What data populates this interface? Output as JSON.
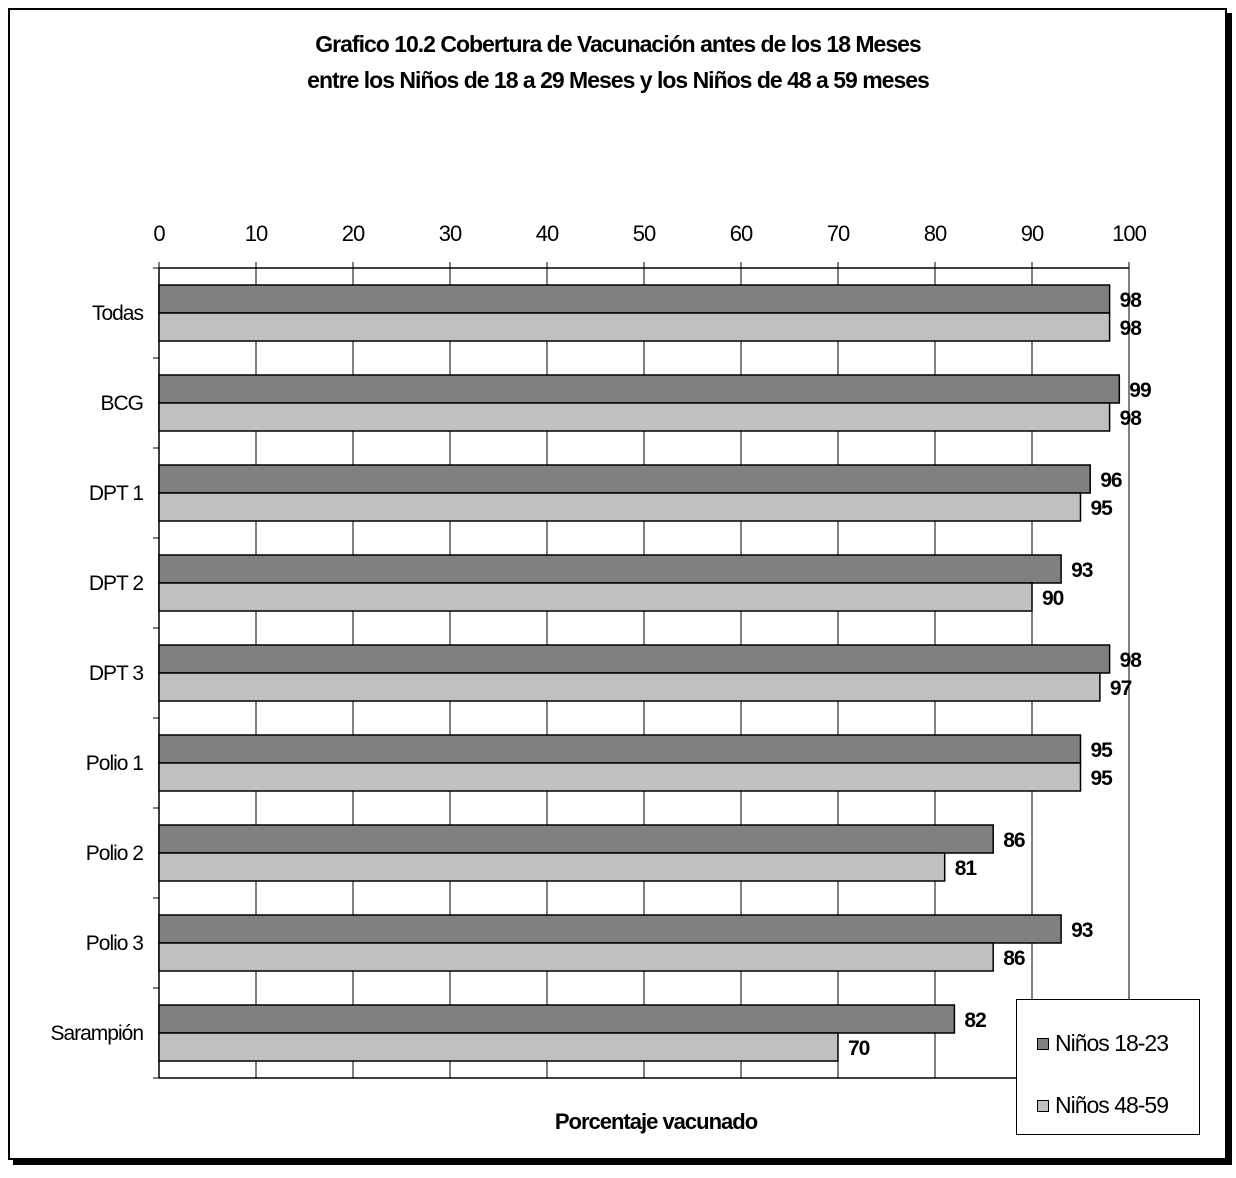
{
  "chart_data": {
    "type": "bar",
    "orientation": "horizontal",
    "title": "Grafico 10.2  Cobertura de Vacunación antes de los 18 Meses",
    "subtitle": "entre los Niños de 18 a 29 Meses y los Niños de 48 a 59 meses",
    "xlabel": "Porcentaje vacunado",
    "ylabel": "",
    "xlim": [
      0,
      100
    ],
    "x_ticks": [
      "0",
      "10",
      "20",
      "30",
      "40",
      "50",
      "60",
      "70",
      "80",
      "90",
      "100"
    ],
    "x_axis_position": "top",
    "grid": true,
    "legend_position": "bottom-right",
    "categories": [
      "Todas",
      "BCG",
      "DPT 1",
      "DPT 2",
      "DPT 3",
      "Polio 1",
      "Polio 2",
      "Polio 3",
      "Sarampión"
    ],
    "series": [
      {
        "name": "Niños 18-23",
        "color": "#808080",
        "values": [
          98,
          99,
          96,
          93,
          98,
          95,
          86,
          93,
          82
        ]
      },
      {
        "name": "Niños 48-59",
        "color": "#c0c0c0",
        "values": [
          98,
          98,
          95,
          90,
          97,
          95,
          81,
          86,
          70
        ]
      }
    ]
  }
}
